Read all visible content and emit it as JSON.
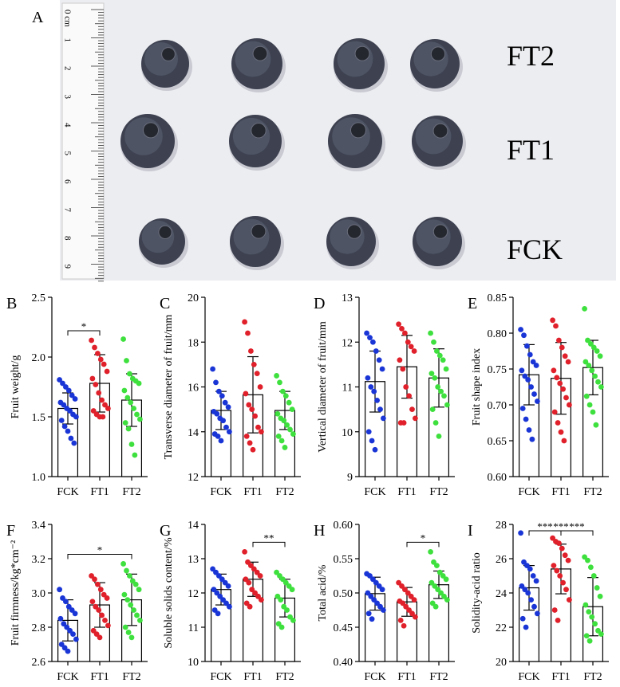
{
  "photo": {
    "label": "A",
    "rows": [
      "FT2",
      "FT1",
      "FCK"
    ],
    "ruler_labels": [
      "0 cm",
      "1",
      "2",
      "3",
      "4",
      "5",
      "6",
      "7",
      "8",
      "9"
    ]
  },
  "chart_data": [
    {
      "type": "bar",
      "label": "B",
      "ylabel": "Fruit weight/g",
      "categories": [
        "FCK",
        "FT1",
        "FT2"
      ],
      "values": [
        1.57,
        1.78,
        1.64
      ],
      "errors": [
        0.13,
        0.24,
        0.22
      ],
      "points": [
        [
          1.81,
          1.78,
          1.75,
          1.72,
          1.68,
          1.65,
          1.62,
          1.6,
          1.57,
          1.55,
          1.52,
          1.5,
          1.47,
          1.42,
          1.38,
          1.32,
          1.28
        ],
        [
          2.14,
          2.08,
          2.03,
          1.98,
          1.94,
          1.88,
          1.82,
          1.77,
          1.7,
          1.64,
          1.6,
          1.57,
          1.55,
          1.52,
          1.5,
          1.5
        ],
        [
          2.15,
          1.97,
          1.86,
          1.82,
          1.8,
          1.78,
          1.72,
          1.66,
          1.62,
          1.57,
          1.52,
          1.48,
          1.45,
          1.4,
          1.27,
          1.18
        ]
      ],
      "colors": [
        "#1a35d6",
        "#e0202a",
        "#3ee03e"
      ],
      "ylim": [
        1.0,
        2.5
      ],
      "yticks": [
        {
          "value": 1.0,
          "label": "1.0"
        },
        1.5,
        {
          "value": 2.0,
          "label": "2.0"
        },
        2.5
      ],
      "significance": [
        {
          "from": "FCK",
          "to": "FT1",
          "label": "*"
        }
      ]
    },
    {
      "type": "bar",
      "label": "C",
      "ylabel": "Transverse diameter of fruit/mm",
      "categories": [
        "FCK",
        "FT1",
        "FT2"
      ],
      "values": [
        14.95,
        15.65,
        14.95
      ],
      "errors": [
        0.85,
        1.7,
        0.85
      ],
      "points": [
        [
          16.8,
          16.2,
          15.8,
          15.6,
          15.3,
          15.1,
          14.9,
          14.8,
          14.6,
          14.5,
          14.2,
          14.0,
          13.9,
          13.8,
          13.6
        ],
        [
          18.9,
          18.4,
          17.6,
          17.0,
          16.6,
          16.0,
          15.7,
          15.2,
          15.0,
          14.7,
          14.2,
          14.0,
          13.8,
          13.5,
          13.2
        ],
        [
          16.5,
          16.2,
          15.8,
          15.6,
          15.3,
          15.0,
          14.8,
          14.6,
          14.5,
          14.3,
          14.1,
          13.9,
          13.8,
          13.6,
          13.3
        ]
      ],
      "colors": [
        "#1a35d6",
        "#e0202a",
        "#3ee03e"
      ],
      "ylim": [
        12,
        20
      ],
      "yticks": [
        12,
        14,
        16,
        18,
        20
      ],
      "significance": []
    },
    {
      "type": "bar",
      "label": "D",
      "ylabel": "Vertical diameter of fruit/mm",
      "categories": [
        "FCK",
        "FT1",
        "FT2"
      ],
      "values": [
        11.12,
        11.45,
        11.2
      ],
      "errors": [
        0.68,
        0.7,
        0.65
      ],
      "points": [
        [
          12.2,
          12.1,
          12.0,
          11.8,
          11.6,
          11.4,
          11.2,
          11.0,
          10.9,
          10.7,
          10.5,
          10.3,
          10.0,
          9.8,
          9.6
        ],
        [
          12.4,
          12.3,
          12.2,
          12.0,
          11.9,
          11.8,
          11.6,
          11.4,
          11.0,
          10.8,
          10.5,
          10.3,
          10.2,
          10.2
        ],
        [
          12.2,
          12.0,
          11.8,
          11.7,
          11.6,
          11.4,
          11.3,
          11.2,
          11.0,
          10.9,
          10.8,
          10.6,
          10.5,
          10.2,
          9.9
        ]
      ],
      "colors": [
        "#1a35d6",
        "#e0202a",
        "#3ee03e"
      ],
      "ylim": [
        9,
        13
      ],
      "yticks": [
        9,
        10,
        11,
        12,
        13
      ],
      "significance": []
    },
    {
      "type": "bar",
      "label": "E",
      "ylabel": "Fruit shape index",
      "categories": [
        "FCK",
        "FT1",
        "FT2"
      ],
      "values": [
        0.742,
        0.737,
        0.752
      ],
      "errors": [
        0.042,
        0.05,
        0.038
      ],
      "points": [
        [
          0.805,
          0.797,
          0.782,
          0.77,
          0.76,
          0.755,
          0.748,
          0.74,
          0.735,
          0.725,
          0.715,
          0.705,
          0.695,
          0.68,
          0.665,
          0.652
        ],
        [
          0.818,
          0.81,
          0.79,
          0.78,
          0.768,
          0.76,
          0.748,
          0.738,
          0.73,
          0.722,
          0.71,
          0.7,
          0.69,
          0.675,
          0.662,
          0.65
        ],
        [
          0.834,
          0.79,
          0.785,
          0.78,
          0.775,
          0.768,
          0.76,
          0.755,
          0.748,
          0.74,
          0.732,
          0.725,
          0.712,
          0.7,
          0.69,
          0.672
        ]
      ],
      "colors": [
        "#1a35d6",
        "#e0202a",
        "#3ee03e"
      ],
      "ylim": [
        0.6,
        0.85
      ],
      "yticks": [
        {
          "value": 0.6,
          "label": "0.60"
        },
        0.65,
        {
          "value": 0.7,
          "label": "0.70"
        },
        0.75,
        {
          "value": 0.8,
          "label": "0.80"
        },
        0.85
      ],
      "significance": []
    },
    {
      "type": "bar",
      "label": "F",
      "ylabel": "Fruit firmness/kg*cm⁻²",
      "categories": [
        "FCK",
        "FT1",
        "FT2"
      ],
      "values": [
        2.84,
        2.93,
        2.96
      ],
      "errors": [
        0.12,
        0.13,
        0.15
      ],
      "points": [
        [
          3.02,
          2.97,
          2.95,
          2.92,
          2.9,
          2.88,
          2.85,
          2.82,
          2.8,
          2.78,
          2.76,
          2.73,
          2.7,
          2.68,
          2.66
        ],
        [
          3.1,
          3.08,
          3.05,
          3.02,
          2.99,
          2.97,
          2.95,
          2.92,
          2.9,
          2.87,
          2.84,
          2.81,
          2.78,
          2.76,
          2.74
        ],
        [
          3.17,
          3.13,
          3.1,
          3.07,
          3.05,
          3.02,
          2.99,
          2.96,
          2.93,
          2.9,
          2.87,
          2.84,
          2.8,
          2.77,
          2.74
        ]
      ],
      "colors": [
        "#1a35d6",
        "#e0202a",
        "#3ee03e"
      ],
      "ylim": [
        2.6,
        3.4
      ],
      "yticks": [
        2.6,
        2.8,
        {
          "value": 3.0,
          "label": "3.0"
        },
        3.2,
        3.4
      ],
      "significance": [
        {
          "from": "FCK",
          "to": "FT2",
          "label": "*"
        }
      ]
    },
    {
      "type": "bar",
      "label": "G",
      "ylabel": "Soluble solids content/%",
      "categories": [
        "FCK",
        "FT1",
        "FT2"
      ],
      "values": [
        12.1,
        12.4,
        11.85
      ],
      "errors": [
        0.45,
        0.5,
        0.55
      ],
      "points": [
        [
          12.7,
          12.6,
          12.5,
          12.4,
          12.3,
          12.2,
          12.1,
          12.0,
          11.9,
          11.8,
          11.7,
          11.6,
          11.5,
          11.4
        ],
        [
          13.2,
          12.9,
          12.8,
          12.7,
          12.6,
          12.5,
          12.4,
          12.3,
          12.1,
          12.0,
          11.9,
          11.8,
          11.7,
          11.6
        ],
        [
          12.6,
          12.5,
          12.4,
          12.3,
          12.2,
          12.1,
          11.9,
          11.8,
          11.6,
          11.5,
          11.3,
          11.2,
          11.1,
          11.0
        ]
      ],
      "colors": [
        "#1a35d6",
        "#e0202a",
        "#3ee03e"
      ],
      "ylim": [
        10,
        14
      ],
      "yticks": [
        10,
        11,
        12,
        13,
        14
      ],
      "significance": [
        {
          "from": "FT1",
          "to": "FT2",
          "label": "**"
        }
      ]
    },
    {
      "type": "bar",
      "label": "H",
      "ylabel": "Total acid/%",
      "categories": [
        "FCK",
        "FT1",
        "FT2"
      ],
      "values": [
        0.499,
        0.487,
        0.512
      ],
      "errors": [
        0.024,
        0.021,
        0.02
      ],
      "points": [
        [
          0.528,
          0.525,
          0.52,
          0.515,
          0.51,
          0.505,
          0.5,
          0.495,
          0.49,
          0.485,
          0.48,
          0.475,
          0.47,
          0.462
        ],
        [
          0.515,
          0.51,
          0.505,
          0.5,
          0.495,
          0.49,
          0.488,
          0.485,
          0.48,
          0.475,
          0.47,
          0.465,
          0.46,
          0.452
        ],
        [
          0.56,
          0.545,
          0.54,
          0.53,
          0.525,
          0.52,
          0.515,
          0.51,
          0.505,
          0.5,
          0.495,
          0.49,
          0.485,
          0.48
        ]
      ],
      "colors": [
        "#1a35d6",
        "#e0202a",
        "#3ee03e"
      ],
      "ylim": [
        0.4,
        0.6
      ],
      "yticks": [
        {
          "value": 0.4,
          "label": "0.40"
        },
        0.45,
        {
          "value": 0.5,
          "label": "0.50"
        },
        0.55,
        {
          "value": 0.6,
          "label": "0.60"
        }
      ],
      "significance": [
        {
          "from": "FT1",
          "to": "FT2",
          "label": "*"
        }
      ]
    },
    {
      "type": "bar",
      "label": "I",
      "ylabel": "Solidity-acid ratio",
      "categories": [
        "FCK",
        "FT1",
        "FT2"
      ],
      "values": [
        24.3,
        25.4,
        23.2
      ],
      "errors": [
        1.3,
        1.45,
        1.7
      ],
      "points": [
        [
          27.5,
          25.8,
          25.6,
          25.4,
          25.0,
          24.7,
          24.4,
          24.2,
          24.0,
          23.6,
          23.2,
          22.8,
          22.5,
          22.0
        ],
        [
          27.2,
          27.0,
          26.9,
          26.6,
          26.2,
          25.9,
          25.6,
          25.3,
          25.0,
          24.6,
          24.2,
          23.6,
          23.0,
          22.4
        ],
        [
          26.1,
          25.9,
          25.5,
          25.0,
          24.3,
          23.8,
          23.3,
          22.9,
          22.6,
          22.2,
          21.8,
          21.6,
          21.5,
          21.2
        ]
      ],
      "colors": [
        "#1a35d6",
        "#e0202a",
        "#3ee03e"
      ],
      "ylim": [
        20,
        28
      ],
      "yticks": [
        20,
        22,
        24,
        26,
        28
      ],
      "significance": [
        {
          "from": "FT1",
          "to": "FT2",
          "label": "***"
        },
        {
          "from": "FCK",
          "to": "FT1",
          "label": "***"
        },
        {
          "from": "FCK",
          "to": "FT2",
          "label": "***"
        }
      ]
    }
  ]
}
